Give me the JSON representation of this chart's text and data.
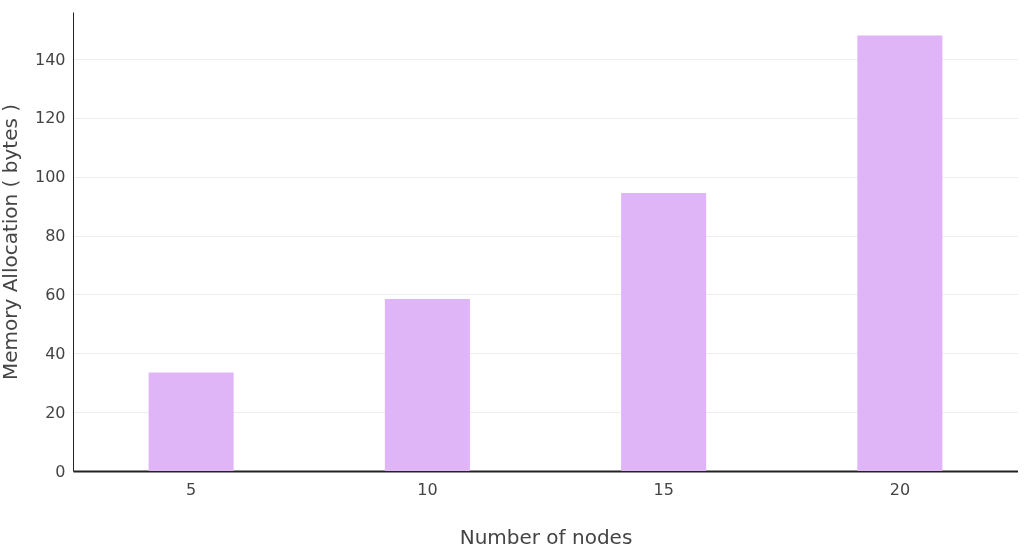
{
  "chart_data": {
    "type": "bar",
    "xlabel": "Number of nodes",
    "ylabel": "Memory Allocation ( bytes )",
    "categories": [
      "5",
      "10",
      "15",
      "20"
    ],
    "values": [
      33.5,
      58.5,
      94.5,
      148
    ],
    "color": "#dfb5f7",
    "ylim": [
      0,
      156
    ],
    "yticks": [
      0,
      20,
      40,
      60,
      80,
      100,
      120,
      140
    ],
    "grid": "y"
  }
}
